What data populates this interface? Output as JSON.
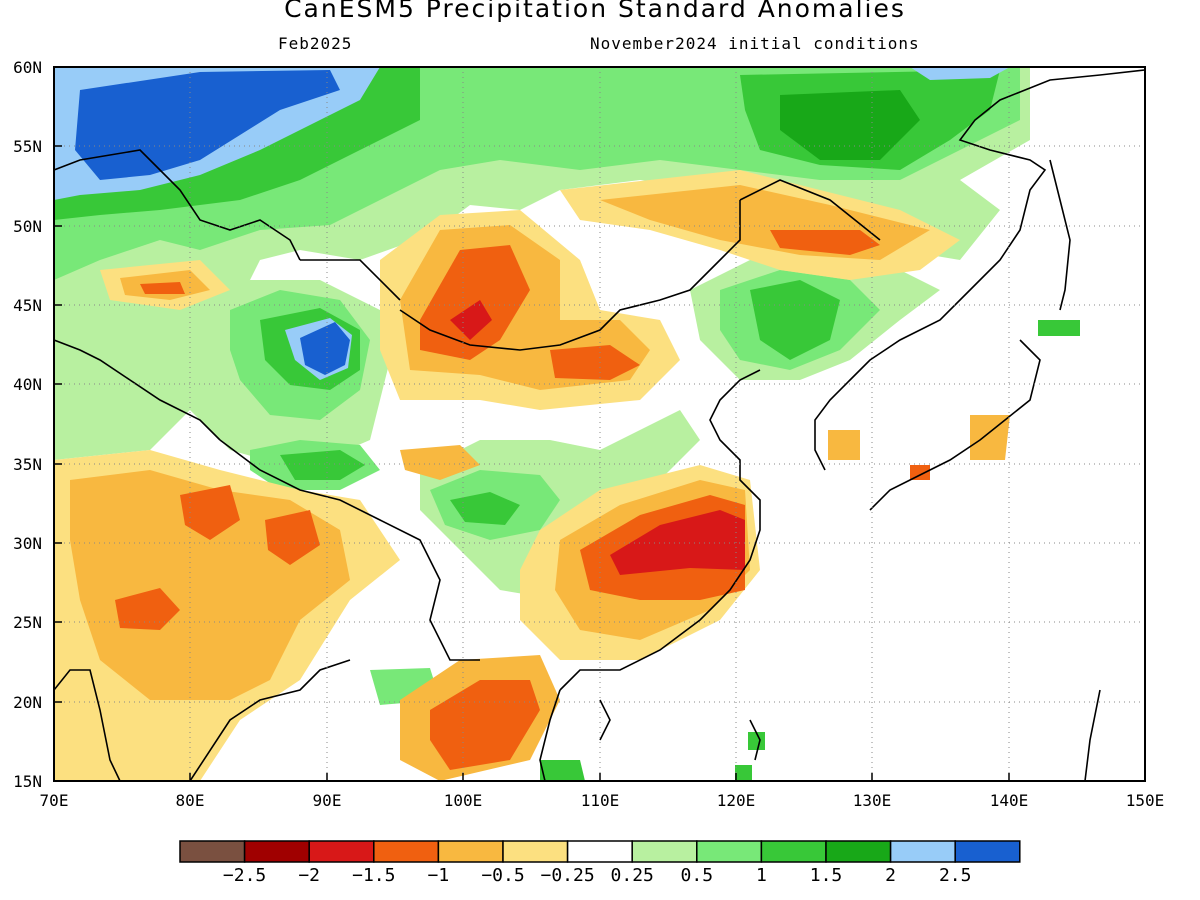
{
  "header": {
    "title": "CanESM5 Precipitation Standard Anomalies",
    "valid_month": "Feb2025",
    "init": "November2024 initial conditions"
  },
  "map": {
    "lon_range": [
      70,
      150
    ],
    "lat_range": [
      15,
      60
    ],
    "x_ticks": [
      "70E",
      "80E",
      "90E",
      "100E",
      "110E",
      "120E",
      "130E",
      "140E",
      "150E"
    ],
    "y_ticks": [
      "60N",
      "55N",
      "50N",
      "45N",
      "40N",
      "35N",
      "30N",
      "25N",
      "20N",
      "15N"
    ],
    "grid": "dotted"
  },
  "legend": {
    "labels": [
      "−2.5",
      "−2",
      "−1.5",
      "−1",
      "−0.5",
      "−0.25",
      "0.25",
      "0.5",
      "1",
      "1.5",
      "2",
      "2.5"
    ],
    "colors": [
      "#7a5040",
      "#a00000",
      "#d81818",
      "#f06010",
      "#f8b840",
      "#fce080",
      "#ffffff",
      "#b8f0a0",
      "#78e878",
      "#38c838",
      "#18a818",
      "#98ccf8",
      "#1860d0"
    ]
  },
  "colors": {
    "dry_strong": "#d81818",
    "dry_mod": "#f06010",
    "dry": "#f8b840",
    "dry_weak": "#fce080",
    "wet_weak": "#b8f0a0",
    "wet": "#78e878",
    "wet_mod": "#38c838",
    "wet_strong": "#18a818",
    "very_wet": "#98ccf8",
    "extreme_wet": "#1860d0"
  }
}
